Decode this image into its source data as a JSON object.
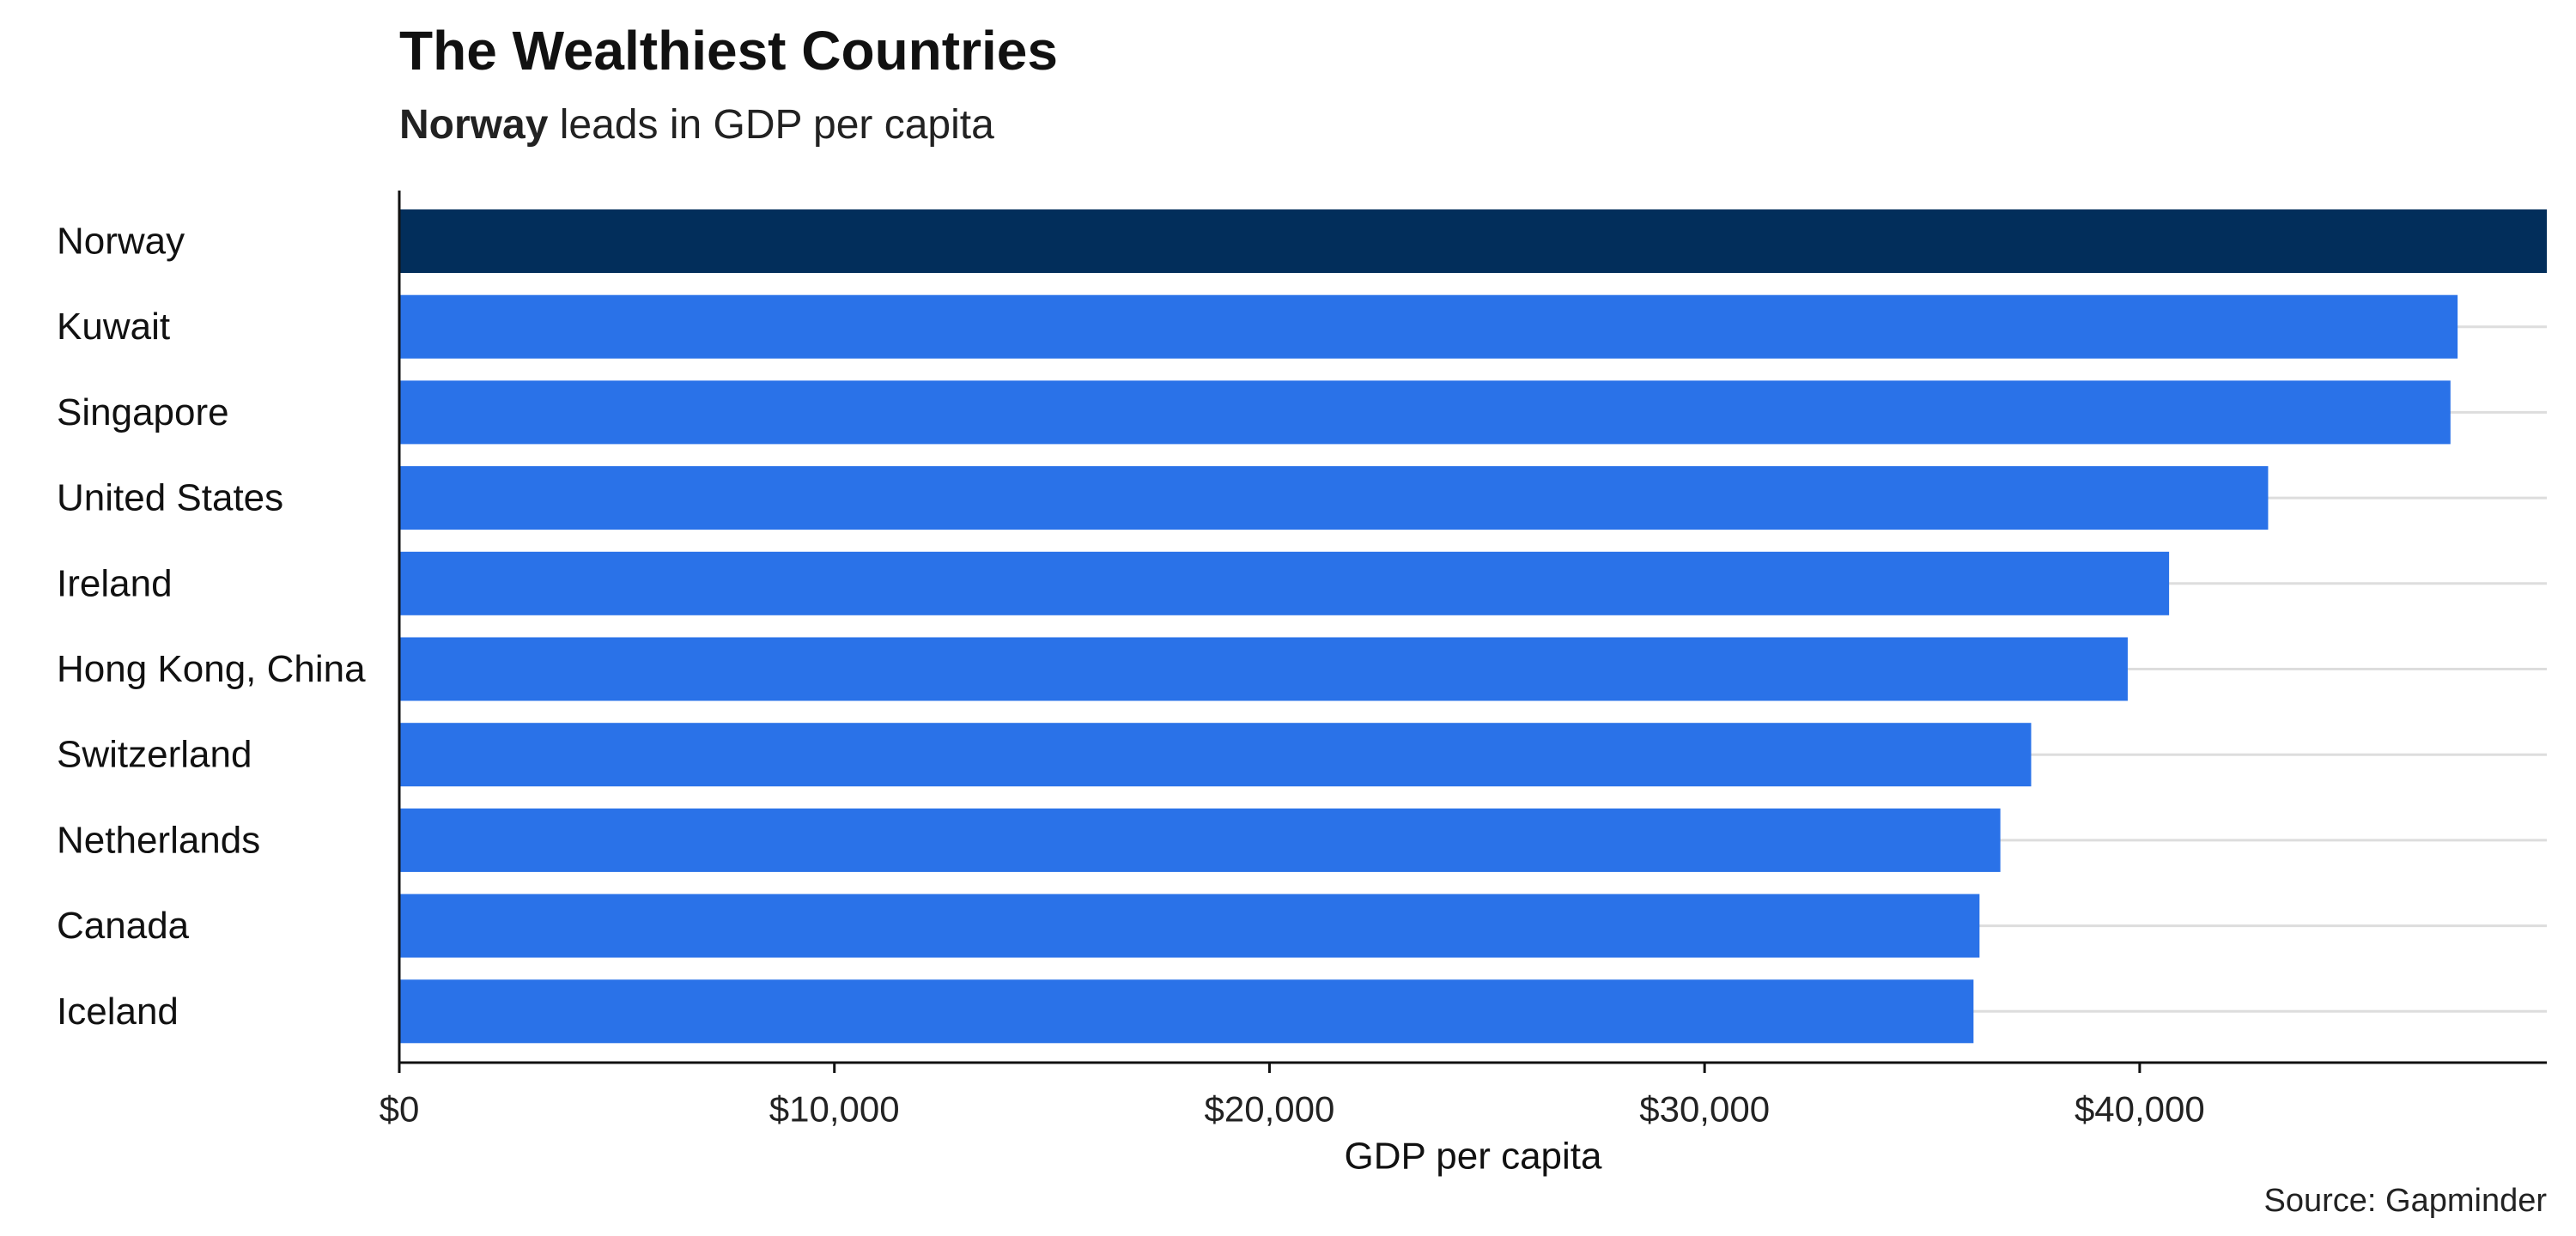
{
  "colors": {
    "highlight": "#022e5b",
    "bar": "#2a72e8",
    "grid": "#dddddd",
    "axis": "#111111"
  },
  "chart_data": {
    "type": "bar",
    "orientation": "horizontal",
    "title": "The Wealthiest Countries",
    "subtitle": {
      "highlight": "Norway",
      "rest": " leads in GDP per capita"
    },
    "categories": [
      "Norway",
      "Kuwait",
      "Singapore",
      "United States",
      "Ireland",
      "Hong Kong, China",
      "Switzerland",
      "Netherlands",
      "Canada",
      "Iceland"
    ],
    "values": [
      49357,
      47307,
      47143,
      42952,
      40676,
      39725,
      37506,
      36798,
      36319,
      36181
    ],
    "highlight_category": "Norway",
    "xlabel": "GDP per capita",
    "ylabel": "",
    "xlim": [
      0,
      49357
    ],
    "x_ticks": [
      0,
      10000,
      20000,
      30000,
      40000
    ],
    "x_tick_labels": [
      "$0",
      "$10,000",
      "$20,000",
      "$30,000",
      "$40,000"
    ],
    "grid": "horizontal",
    "source": "Source: Gapminder"
  }
}
